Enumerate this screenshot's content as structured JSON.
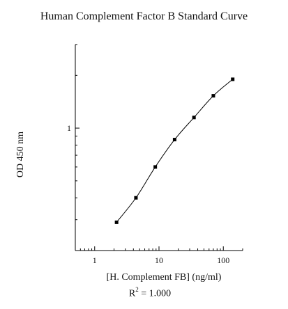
{
  "chart_data": {
    "type": "scatter",
    "title": "Human Complement Factor B Standard Curve",
    "xlabel": "[H. Complement FB] (ng/ml)",
    "ylabel": "OD 450 nm",
    "annotation": {
      "prefix": "R",
      "sup": "2",
      "suffix": " = 1.000"
    },
    "x_scale": "log",
    "y_scale": "log",
    "xlim": [
      0.5,
      200
    ],
    "ylim": [
      0.2,
      3.0
    ],
    "x_ticks": [
      1,
      10,
      100
    ],
    "x_tick_labels": [
      "1",
      "10",
      "100"
    ],
    "y_ticks": [
      1
    ],
    "y_tick_labels": [
      "1"
    ],
    "grid": false,
    "series": [
      {
        "x": [
          2.19,
          4.38,
          8.75,
          17.5,
          35,
          70,
          140
        ],
        "y": [
          0.29,
          0.4,
          0.6,
          0.86,
          1.15,
          1.53,
          1.9
        ],
        "marker": "square",
        "fit_line": true,
        "color": "#000000"
      }
    ]
  }
}
